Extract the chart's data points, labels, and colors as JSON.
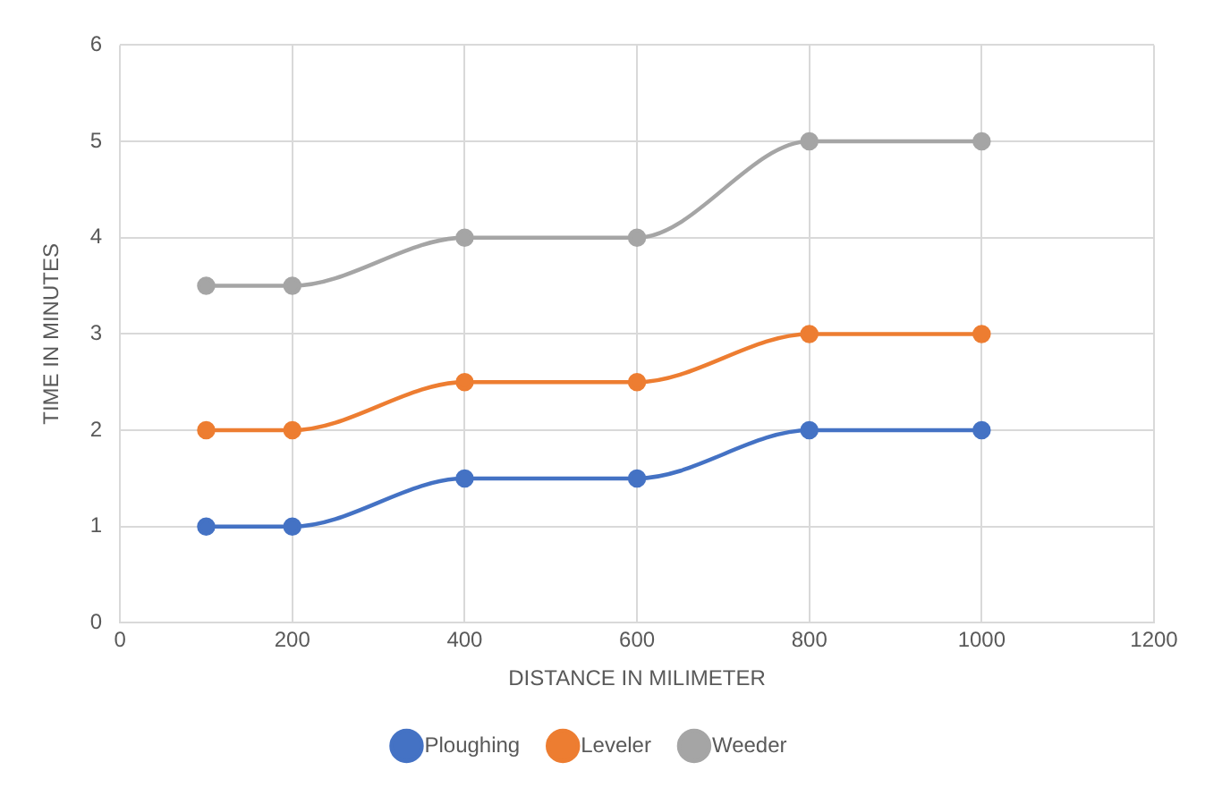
{
  "chart_data": {
    "type": "line",
    "xlabel": "DISTANCE IN MILIMETER",
    "ylabel": "TIME IN MINUTES",
    "x": [
      100,
      200,
      400,
      600,
      800,
      1000
    ],
    "series": [
      {
        "name": "Ploughing",
        "color": "#4472c4",
        "values": [
          1,
          1,
          1.5,
          1.5,
          2,
          2
        ]
      },
      {
        "name": "Leveler",
        "color": "#ed7d31",
        "values": [
          2,
          2,
          2.5,
          2.5,
          3,
          3
        ]
      },
      {
        "name": "Weeder",
        "color": "#a5a5a5",
        "values": [
          3.5,
          3.5,
          4,
          4,
          5,
          5
        ]
      }
    ],
    "xlim": [
      0,
      1200
    ],
    "xticks": [
      0,
      200,
      400,
      600,
      800,
      1000,
      1200
    ],
    "ylim": [
      0,
      6
    ],
    "yticks": [
      0,
      1,
      2,
      3,
      4,
      5,
      6
    ],
    "grid": true,
    "legend": "bottom",
    "marker": "circle",
    "line_style": "solid"
  }
}
